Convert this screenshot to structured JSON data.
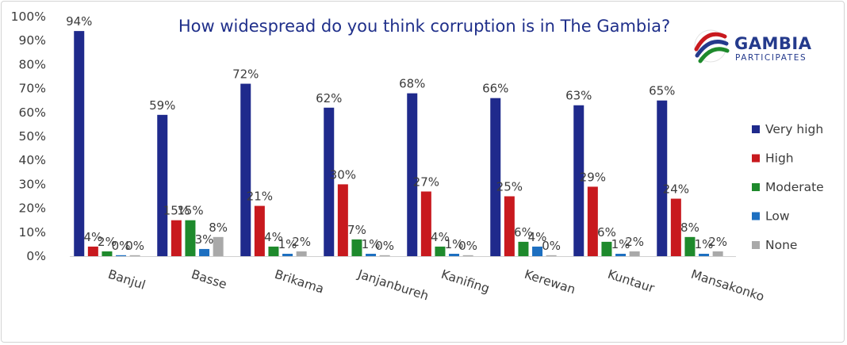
{
  "chart_data": {
    "type": "bar",
    "title": "How widespread do you think corruption is in The Gambia?",
    "categories": [
      "Banjul",
      "Basse",
      "Brikama",
      "Janjanbureh",
      "Kanifing",
      "Kerewan",
      "Kuntaur",
      "Mansakonko"
    ],
    "series": [
      {
        "name": "Very high",
        "color": "#1f2a8c",
        "values": [
          94,
          59,
          72,
          62,
          68,
          66,
          63,
          65
        ]
      },
      {
        "name": "High",
        "color": "#c8191e",
        "values": [
          4,
          15,
          21,
          30,
          27,
          25,
          29,
          24
        ]
      },
      {
        "name": "Moderate",
        "color": "#1e8a2c",
        "values": [
          2,
          15,
          4,
          7,
          4,
          6,
          6,
          8
        ]
      },
      {
        "name": "Low",
        "color": "#1d6fc0",
        "values": [
          0,
          3,
          1,
          1,
          1,
          4,
          1,
          1
        ]
      },
      {
        "name": "None",
        "color": "#a9a9a9",
        "values": [
          0,
          8,
          2,
          0,
          0,
          0,
          2,
          2
        ]
      }
    ],
    "ylim": [
      0,
      100
    ],
    "yticks": [
      "0%",
      "10%",
      "20%",
      "30%",
      "40%",
      "50%",
      "60%",
      "70%",
      "80%",
      "90%",
      "100%"
    ],
    "value_suffix": "%",
    "grid": false,
    "legend": "right"
  },
  "brand": {
    "name": "GAMBIA",
    "tagline": "PARTICIPATES"
  }
}
